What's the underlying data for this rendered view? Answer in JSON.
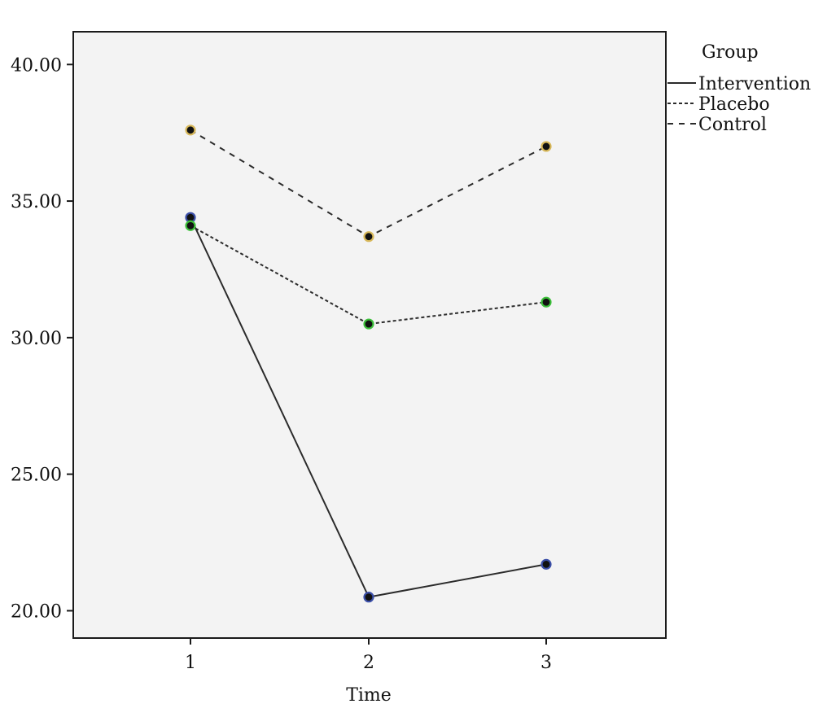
{
  "chart_data": {
    "type": "line",
    "xlabel": "Time",
    "ylabel": "",
    "categories": [
      "1",
      "2",
      "3"
    ],
    "ylim": [
      19.0,
      41.2
    ],
    "yticks": [
      20,
      25,
      30,
      35,
      40
    ],
    "ytick_labels": [
      "20.00",
      "25.00",
      "30.00",
      "35.00",
      "40.00"
    ],
    "legend_title": "Group",
    "legend_position": "top-right, outside plot",
    "grid": false,
    "plot_background": "#f3f3f3",
    "series": [
      {
        "name": "Intervention",
        "values": [
          34.4,
          20.5,
          21.7
        ],
        "dash": "solid",
        "marker_color": "#3b4fa8"
      },
      {
        "name": "Placebo",
        "values": [
          34.1,
          30.5,
          31.3
        ],
        "dash": "dotted",
        "marker_color": "#3cbf3a"
      },
      {
        "name": "Control",
        "values": [
          37.6,
          33.7,
          37.0
        ],
        "dash": "dashed",
        "marker_color": "#d8b85a"
      }
    ]
  }
}
